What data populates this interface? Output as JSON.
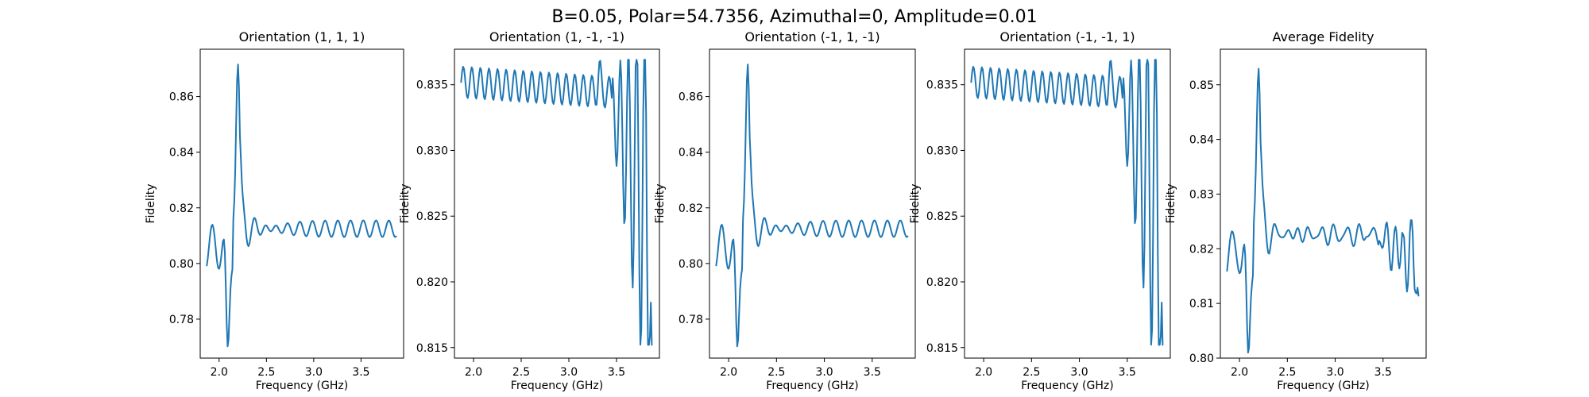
{
  "figure": {
    "title": "B=0.05, Polar=54.7356, Azimuthal=0, Amplitude=0.01"
  },
  "colors": {
    "series": "#1f77b4",
    "axes": "#000000",
    "background": "#ffffff"
  },
  "chart_data": [
    {
      "type": "line",
      "title": "Orientation (1, 1, 1)",
      "xlabel": "Frequency (GHz)",
      "ylabel": "Fidelity",
      "xlim": [
        1.8,
        3.95
      ],
      "ylim": [
        0.766,
        0.877
      ],
      "xticks": [
        "2.0",
        "2.5",
        "3.0",
        "3.5"
      ],
      "yticks": [
        "0.78",
        "0.80",
        "0.82",
        "0.84",
        "0.86"
      ],
      "grid": false,
      "series": [
        {
          "values_profile": "A"
        }
      ],
      "x": [
        1.87,
        3.87
      ],
      "y_peak": {
        "x": 2.2,
        "y": 0.874
      },
      "y_min": {
        "x": 2.09,
        "y": 0.771
      }
    },
    {
      "type": "line",
      "title": "Orientation (1, -1, -1)",
      "xlabel": "Frequency (GHz)",
      "ylabel": "Fidelity",
      "xlim": [
        1.8,
        3.95
      ],
      "ylim": [
        0.8142,
        0.8377
      ],
      "xticks": [
        "2.0",
        "2.5",
        "3.0",
        "3.5"
      ],
      "yticks": [
        "0.815",
        "0.820",
        "0.825",
        "0.830",
        "0.835"
      ],
      "grid": false,
      "series": [
        {
          "values_profile": "B"
        }
      ],
      "x": [
        1.87,
        3.87
      ],
      "y_max": {
        "x": 3.32,
        "y": 0.837
      },
      "y_min": {
        "x": 3.83,
        "y": 0.815
      }
    },
    {
      "type": "line",
      "title": "Orientation (-1, 1, -1)",
      "xlabel": "Frequency (GHz)",
      "ylabel": "Fidelity",
      "xlim": [
        1.8,
        3.95
      ],
      "ylim": [
        0.766,
        0.877
      ],
      "xticks": [
        "2.0",
        "2.5",
        "3.0",
        "3.5"
      ],
      "yticks": [
        "0.78",
        "0.80",
        "0.82",
        "0.84",
        "0.86"
      ],
      "grid": false,
      "series": [
        {
          "values_profile": "A"
        }
      ],
      "x": [
        1.87,
        3.87
      ],
      "y_peak": {
        "x": 2.2,
        "y": 0.874
      },
      "y_min": {
        "x": 2.09,
        "y": 0.771
      }
    },
    {
      "type": "line",
      "title": "Orientation (-1, -1, 1)",
      "xlabel": "Frequency (GHz)",
      "ylabel": "Fidelity",
      "xlim": [
        1.8,
        3.95
      ],
      "ylim": [
        0.8142,
        0.8377
      ],
      "xticks": [
        "2.0",
        "2.5",
        "3.0",
        "3.5"
      ],
      "yticks": [
        "0.815",
        "0.820",
        "0.825",
        "0.830",
        "0.835"
      ],
      "grid": false,
      "series": [
        {
          "values_profile": "B"
        }
      ],
      "x": [
        1.87,
        3.87
      ],
      "y_max": {
        "x": 3.32,
        "y": 0.837
      },
      "y_min": {
        "x": 3.83,
        "y": 0.815
      }
    },
    {
      "type": "line",
      "title": "Average Fidelity",
      "xlabel": "Frequency (GHz)",
      "ylabel": "Fidelity",
      "xlim": [
        1.8,
        3.95
      ],
      "ylim": [
        0.8,
        0.8565
      ],
      "xticks": [
        "2.0",
        "2.5",
        "3.0",
        "3.5"
      ],
      "yticks": [
        "0.80",
        "0.81",
        "0.82",
        "0.83",
        "0.84",
        "0.85"
      ],
      "grid": false,
      "series": [
        {
          "values_profile": "AVG"
        }
      ],
      "x": [
        1.87,
        3.87
      ],
      "y_peak": {
        "x": 2.2,
        "y": 0.855
      },
      "y_min": {
        "x": 2.09,
        "y": 0.803
      }
    }
  ]
}
